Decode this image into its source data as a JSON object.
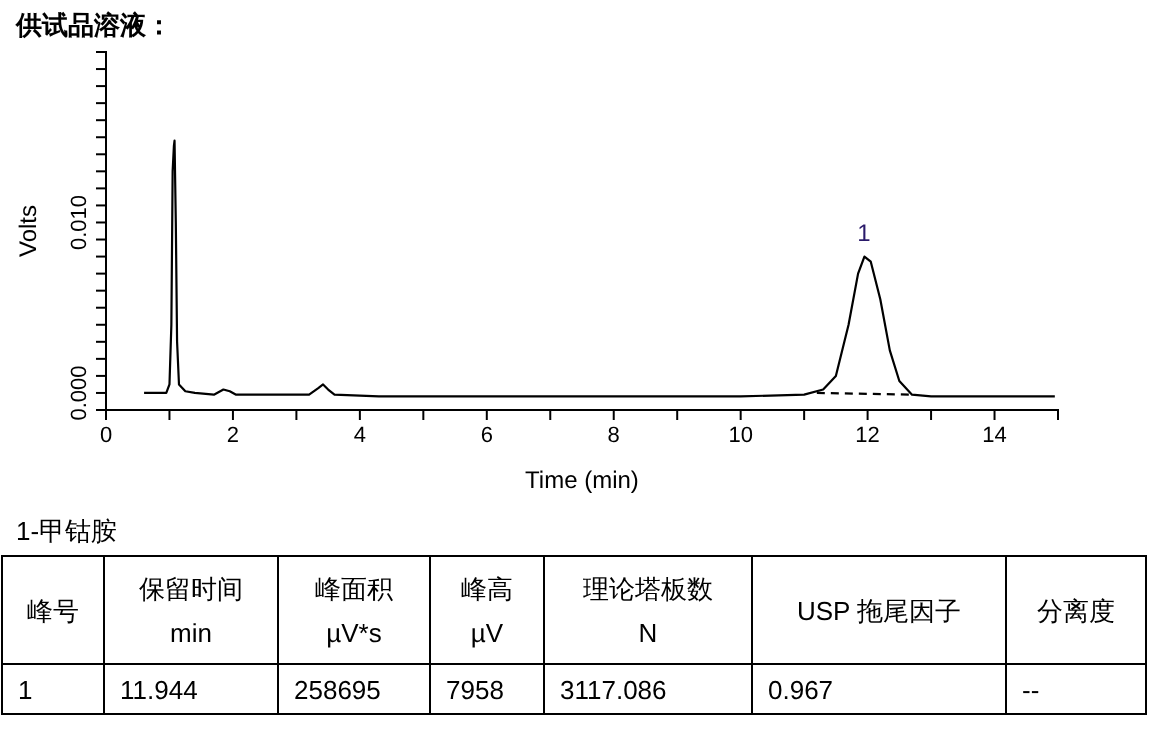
{
  "chart_data": {
    "type": "line",
    "title": "供试品溶液：",
    "xlabel": "Time (min)",
    "ylabel": "Volts",
    "xlim": [
      0,
      15
    ],
    "ylim": [
      -0.001,
      0.02
    ],
    "xticks": [
      0,
      {
        "value": 1,
        "label": null
      },
      2,
      {
        "value": 3,
        "label": null
      },
      4,
      {
        "value": 5,
        "label": null
      },
      6,
      {
        "value": 7,
        "label": null
      },
      8,
      {
        "value": 9,
        "label": null
      },
      10,
      {
        "value": 11,
        "label": null
      },
      12,
      {
        "value": 13,
        "label": null
      },
      14,
      {
        "value": 15,
        "label": null
      }
    ],
    "yticks": [
      {
        "value": 0,
        "label": "0.000"
      },
      {
        "value": 0.001,
        "label": null
      },
      {
        "value": 0.002,
        "label": null
      },
      {
        "value": 0.003,
        "label": null
      },
      {
        "value": 0.004,
        "label": null
      },
      {
        "value": 0.005,
        "label": null
      },
      {
        "value": 0.006,
        "label": null
      },
      {
        "value": 0.007,
        "label": null
      },
      {
        "value": 0.008,
        "label": null
      },
      {
        "value": 0.009,
        "label": null
      },
      {
        "value": 0.01,
        "label": "0.010"
      },
      {
        "value": 0.011,
        "label": null
      },
      {
        "value": 0.012,
        "label": null
      },
      {
        "value": 0.013,
        "label": null
      },
      {
        "value": 0.014,
        "label": null
      },
      {
        "value": 0.015,
        "label": null
      },
      {
        "value": 0.016,
        "label": null
      },
      {
        "value": 0.017,
        "label": null
      },
      {
        "value": 0.018,
        "label": null
      },
      {
        "value": 0.019,
        "label": null
      },
      {
        "value": 0.02,
        "label": null
      }
    ],
    "series": [
      {
        "color": "#000000",
        "line_style": "solid",
        "x": [
          0.6,
          0.8,
          0.95,
          1.0,
          1.03,
          1.05,
          1.07,
          1.08,
          1.1,
          1.12,
          1.15,
          1.25,
          1.4,
          1.7,
          1.85,
          1.95,
          2.05,
          2.5,
          3.2,
          3.35,
          3.42,
          3.5,
          3.6,
          4.3,
          8,
          10,
          11.0,
          11.3,
          11.5,
          11.7,
          11.85,
          11.95,
          12.05,
          12.2,
          12.35,
          12.5,
          12.7,
          13,
          14,
          14.95
        ],
        "values": [
          0,
          0,
          0,
          0.0005,
          0.004,
          0.013,
          0.0145,
          0.0148,
          0.01,
          0.003,
          0.0005,
          0.0001,
          0,
          -0.0001,
          0.0002,
          0.0001,
          -0.0001,
          -0.0001,
          -0.0001,
          0.0003,
          0.0005,
          0.0002,
          -0.0001,
          -0.0002,
          -0.0002,
          -0.0002,
          -0.0001,
          0.0002,
          0.001,
          0.004,
          0.007,
          0.008,
          0.0077,
          0.0055,
          0.0025,
          0.0007,
          -0.0001,
          -0.0002,
          -0.0002,
          -0.0002
        ]
      },
      {
        "color": "#000000",
        "line_style": "dashed",
        "x": [
          11.2,
          12.7
        ],
        "values": [
          0,
          -0.0001
        ]
      }
    ],
    "annotations": [
      {
        "text": "1",
        "x": 11.944,
        "y": 0.008
      },
      "1-甲钴胺",
      "峰号",
      "保留时间\nmin",
      "峰面积\nµV*s",
      "峰高\nµV",
      "理论塔板数\nN",
      "USP 拖尾因子",
      "分离度",
      "1",
      "11.944",
      "258695",
      "7958",
      "3117.086",
      "0.967",
      "--"
    ]
  }
}
